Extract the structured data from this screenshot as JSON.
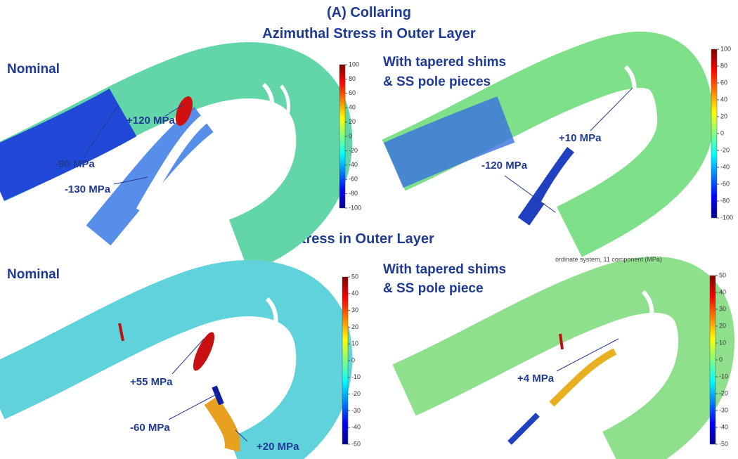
{
  "title": "(A)  Collaring",
  "sections": [
    "Azimuthal Stress in Outer Layer",
    "Axial Stress in Outer Layer"
  ],
  "panels": [
    {
      "label": [
        "Nominal"
      ],
      "annotations": [
        "+120 MPa",
        "-90 MPa",
        "-130 MPa"
      ],
      "colorbar": {
        "clim": [
          -100,
          100
        ],
        "ticks": [
          100,
          80,
          60,
          40,
          20,
          0,
          -20,
          -40,
          -60,
          -80,
          -100
        ]
      }
    },
    {
      "label": [
        "With tapered shims",
        "& SS pole pieces"
      ],
      "annotations": [
        "+10 MPa",
        "-120 MPa"
      ],
      "colorbar": {
        "clim": [
          -100,
          100
        ],
        "ticks": [
          100,
          80,
          60,
          40,
          20,
          0,
          -20,
          -40,
          -60,
          -80,
          -100
        ]
      }
    },
    {
      "label": [
        "Nominal"
      ],
      "annotations": [
        "+55 MPa",
        "-60 MPa",
        "+20 MPa"
      ],
      "colorbar": {
        "clim": [
          -50,
          50
        ],
        "ticks": [
          50,
          40,
          30,
          20,
          10,
          0,
          -10,
          -20,
          -30,
          -40,
          -50
        ]
      }
    },
    {
      "label": [
        "With tapered shims",
        "& SS pole piece"
      ],
      "annotations": [
        "+4 MPa"
      ],
      "caption": "ordinate system, 11 component (MPa)",
      "colorbar": {
        "clim": [
          -50,
          50
        ],
        "ticks": [
          50,
          40,
          30,
          20,
          10,
          0,
          -10,
          -20,
          -30,
          -40,
          -50
        ]
      }
    }
  ]
}
